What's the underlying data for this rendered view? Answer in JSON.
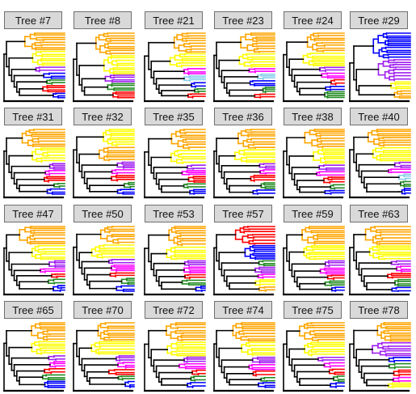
{
  "trees": [
    {
      "label": "Tree #7",
      "groups": [
        "orange",
        "yellow",
        "purple",
        "blue",
        "green",
        "red",
        "blue"
      ],
      "root": "black"
    },
    {
      "label": "Tree #8",
      "groups": [
        "orange",
        "yellow",
        "purple",
        "green",
        "red"
      ],
      "root": "black"
    },
    {
      "label": "Tree #21",
      "groups": [
        "orange",
        "yellow",
        "magenta",
        "cyan",
        "blue",
        "green",
        "red"
      ],
      "root": "black"
    },
    {
      "label": "Tree #23",
      "groups": [
        "orange",
        "yellow",
        "magenta",
        "cyan",
        "blue",
        "green",
        "red"
      ],
      "root": "black"
    },
    {
      "label": "Tree #24",
      "groups": [
        "orange",
        "yellow",
        "purple",
        "magenta",
        "red",
        "blue",
        "green"
      ],
      "root": "black"
    },
    {
      "label": "Tree #29",
      "groups": [
        "blue",
        "purple",
        "yellow",
        "orange"
      ],
      "root": "black"
    },
    {
      "label": "Tree #31",
      "groups": [
        "orange",
        "yellow",
        "purple",
        "magenta",
        "red",
        "green",
        "blue"
      ],
      "root": "black"
    },
    {
      "label": "Tree #32",
      "groups": [
        "yellow",
        "orange",
        "purple",
        "magenta",
        "red",
        "green",
        "blue"
      ],
      "root": "black"
    },
    {
      "label": "Tree #35",
      "groups": [
        "orange",
        "yellow",
        "purple",
        "magenta",
        "red",
        "green",
        "blue"
      ],
      "root": "black"
    },
    {
      "label": "Tree #36",
      "groups": [
        "orange",
        "yellow",
        "purple",
        "magenta",
        "red",
        "green",
        "blue"
      ],
      "root": "black"
    },
    {
      "label": "Tree #38",
      "groups": [
        "orange",
        "yellow",
        "purple",
        "magenta",
        "red",
        "green",
        "blue"
      ],
      "root": "black"
    },
    {
      "label": "Tree #40",
      "groups": [
        "orange",
        "yellow",
        "purple",
        "magenta",
        "cyan",
        "green",
        "blue"
      ],
      "root": "black"
    },
    {
      "label": "Tree #47",
      "groups": [
        "orange",
        "yellow",
        "purple",
        "magenta",
        "red",
        "green",
        "blue"
      ],
      "root": "black"
    },
    {
      "label": "Tree #50",
      "groups": [
        "orange",
        "yellow",
        "purple",
        "magenta",
        "red",
        "green",
        "blue"
      ],
      "root": "black"
    },
    {
      "label": "Tree #53",
      "groups": [
        "orange",
        "yellow",
        "purple",
        "magenta",
        "red",
        "green",
        "blue"
      ],
      "root": "black"
    },
    {
      "label": "Tree #57",
      "groups": [
        "red",
        "blue",
        "green",
        "purple",
        "magenta",
        "yellow",
        "orange"
      ],
      "root": "black"
    },
    {
      "label": "Tree #59",
      "groups": [
        "orange",
        "yellow",
        "purple",
        "magenta",
        "red",
        "green",
        "blue"
      ],
      "root": "black"
    },
    {
      "label": "Tree #63",
      "groups": [
        "orange",
        "yellow",
        "purple",
        "magenta",
        "red",
        "green",
        "blue"
      ],
      "root": "black"
    },
    {
      "label": "Tree #65",
      "groups": [
        "orange",
        "yellow",
        "purple",
        "magenta",
        "red",
        "green",
        "blue"
      ],
      "root": "black"
    },
    {
      "label": "Tree #70",
      "groups": [
        "orange",
        "yellow",
        "purple",
        "magenta",
        "red",
        "green",
        "blue"
      ],
      "root": "black"
    },
    {
      "label": "Tree #72",
      "groups": [
        "orange",
        "yellow",
        "purple",
        "magenta",
        "red",
        "green",
        "blue"
      ],
      "root": "black"
    },
    {
      "label": "Tree #74",
      "groups": [
        "orange",
        "yellow",
        "purple",
        "magenta",
        "red",
        "green",
        "blue"
      ],
      "root": "black"
    },
    {
      "label": "Tree #75",
      "groups": [
        "orange",
        "yellow",
        "purple",
        "magenta",
        "red",
        "green",
        "blue"
      ],
      "root": "black"
    },
    {
      "label": "Tree #78",
      "groups": [
        "orange",
        "purple",
        "blue",
        "green",
        "red",
        "magenta",
        "yellow"
      ],
      "root": "black"
    }
  ],
  "colors": {
    "orange": "#ffa500",
    "yellow": "#ffff00",
    "purple": "#a020f0",
    "magenta": "#ff00ff",
    "cyan": "#87ceeb",
    "red": "#ff0000",
    "green": "#228b22",
    "blue": "#0000ff",
    "black": "#000000",
    "label_bg": "#d9d9d9"
  }
}
